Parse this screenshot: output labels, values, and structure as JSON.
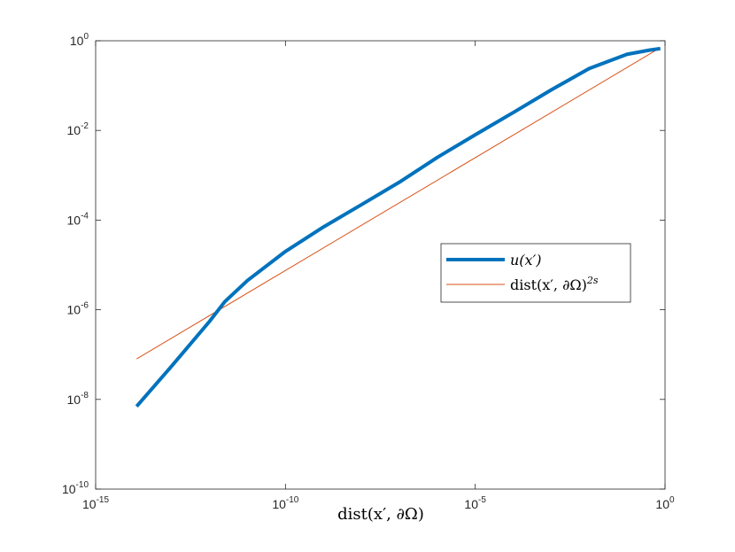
{
  "chart_data": {
    "type": "line",
    "xlabel": "dist(x′, ∂Ω)",
    "ylabel": "",
    "x_scale": "log",
    "y_scale": "log",
    "xlim": [
      1e-15,
      1
    ],
    "ylim": [
      1e-10,
      1
    ],
    "x_ticks": [
      {
        "value": 1e-15,
        "base": "10",
        "exp": "-15"
      },
      {
        "value": 1e-10,
        "base": "10",
        "exp": "-10"
      },
      {
        "value": 1e-05,
        "base": "10",
        "exp": "-5"
      },
      {
        "value": 1,
        "base": "10",
        "exp": "0"
      }
    ],
    "y_ticks": [
      {
        "value": 1e-10,
        "base": "10",
        "exp": "-10"
      },
      {
        "value": 1e-08,
        "base": "10",
        "exp": "-8"
      },
      {
        "value": 1e-06,
        "base": "10",
        "exp": "-6"
      },
      {
        "value": 0.0001,
        "base": "10",
        "exp": "-4"
      },
      {
        "value": 0.01,
        "base": "10",
        "exp": "-2"
      },
      {
        "value": 1,
        "base": "10",
        "exp": "0"
      }
    ],
    "grid": false,
    "legend_position": "right",
    "series": [
      {
        "name": "u(x′)",
        "color": "#0072BD",
        "line_width": "thick",
        "x": [
          1.2e-14,
          1e-13,
          1e-12,
          2.5e-12,
          1e-11,
          1e-10,
          1e-09,
          1e-08,
          1e-07,
          1e-06,
          1e-05,
          0.0001,
          0.001,
          0.01,
          0.1,
          0.4,
          0.75
        ],
        "y": [
          7e-09,
          5.5e-08,
          5.5e-07,
          1.5e-06,
          4.5e-06,
          2e-05,
          7e-05,
          0.00022,
          0.0007,
          0.0025,
          0.008,
          0.025,
          0.08,
          0.24,
          0.5,
          0.62,
          0.67
        ]
      },
      {
        "name": "dist(x′, ∂Ω)",
        "name_sup": "2s",
        "color": "#D95319",
        "line_width": "thin",
        "x": [
          1.2e-14,
          0.75
        ],
        "y": [
          8e-08,
          0.7
        ]
      }
    ]
  }
}
